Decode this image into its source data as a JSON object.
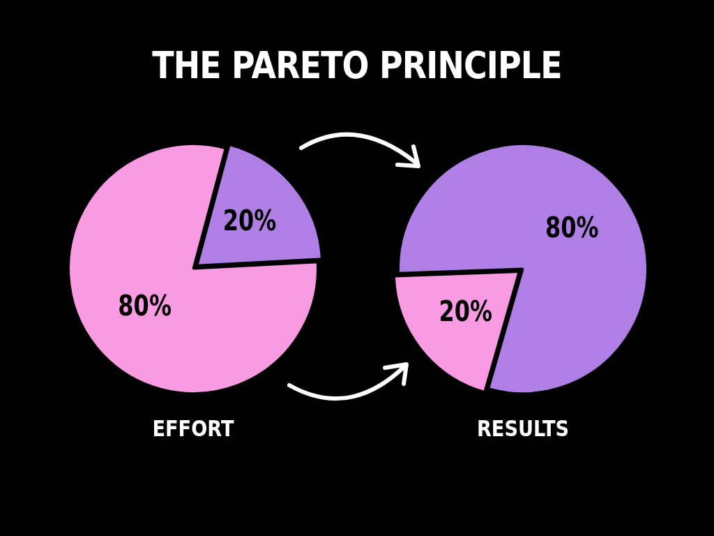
{
  "chart_data": [
    {
      "type": "pie",
      "title": "THE PARETO PRINCIPLE",
      "xlabel": "EFFORT",
      "categories": [
        null,
        null
      ],
      "values": [
        80,
        20
      ],
      "colors": [
        "#f99be2",
        "#b07fe6"
      ],
      "value_labels": [
        "80%",
        "20%"
      ],
      "legend": false
    },
    {
      "type": "pie",
      "xlabel": "RESULTS",
      "categories": [
        null,
        null
      ],
      "values": [
        80,
        20
      ],
      "colors": [
        "#b07fe6",
        "#f99be2"
      ],
      "value_labels": [
        "80%",
        "20%"
      ],
      "legend": false
    }
  ]
}
